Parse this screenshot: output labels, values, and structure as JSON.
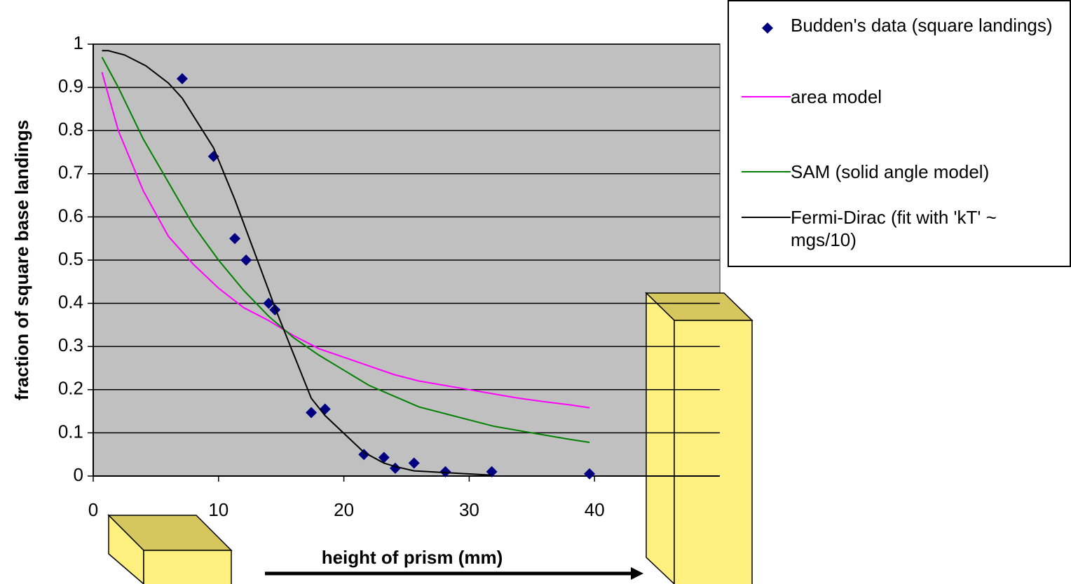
{
  "chart_data": {
    "type": "scatter",
    "xlabel": "height of prism (mm)",
    "ylabel": "fraction of square base landings",
    "xlim": [
      0,
      50
    ],
    "xticks": [
      0,
      10,
      20,
      30,
      40
    ],
    "ylim": [
      0,
      1
    ],
    "yticks": [
      0,
      0.1,
      0.2,
      0.3,
      0.4,
      0.5,
      0.6,
      0.7,
      0.8,
      0.9,
      1
    ],
    "grid": true,
    "legend": "upper right",
    "series": [
      {
        "name": "Budden's data (square landings)",
        "color": "#000080",
        "mode": "markers",
        "x": [
          7.1,
          9.6,
          11.3,
          12.2,
          14,
          14.5,
          17.4,
          18.5,
          21.6,
          23.2,
          24.1,
          25.6,
          28.1,
          31.8,
          39.6
        ],
        "values": [
          0.92,
          0.74,
          0.55,
          0.5,
          0.4,
          0.385,
          0.147,
          0.155,
          0.05,
          0.043,
          0.018,
          0.03,
          0.01,
          0.01,
          0.005
        ]
      },
      {
        "name": "area model",
        "color": "#ff00ff",
        "mode": "lines",
        "x": [
          0.7,
          2,
          4,
          6,
          8,
          10,
          12,
          14,
          16,
          18,
          20,
          22,
          24,
          26,
          28,
          30,
          32,
          34,
          36,
          38,
          39.6
        ],
        "values": [
          0.935,
          0.8,
          0.66,
          0.555,
          0.49,
          0.435,
          0.39,
          0.36,
          0.325,
          0.295,
          0.275,
          0.255,
          0.235,
          0.22,
          0.21,
          0.2,
          0.19,
          0.18,
          0.172,
          0.165,
          0.158
        ]
      },
      {
        "name": "SAM (solid angle model)",
        "color": "#008000",
        "mode": "lines",
        "x": [
          0.7,
          2,
          4,
          6,
          8,
          10,
          12,
          14,
          16,
          18,
          20,
          22,
          24,
          26,
          28,
          30,
          32,
          34,
          36,
          38,
          39.6
        ],
        "values": [
          0.97,
          0.9,
          0.78,
          0.68,
          0.58,
          0.5,
          0.43,
          0.37,
          0.32,
          0.28,
          0.245,
          0.21,
          0.185,
          0.16,
          0.145,
          0.13,
          0.115,
          0.105,
          0.095,
          0.085,
          0.078
        ]
      },
      {
        "name": "Fermi-Dirac (fit with 'kT' ~ mgs/10)",
        "color": "#000000",
        "mode": "lines",
        "x": [
          0.7,
          1.2,
          2.5,
          4.2,
          6,
          7.1,
          9.6,
          11.3,
          12.2,
          14,
          14.5,
          17.4,
          18.5,
          21.6,
          23.2,
          24.1,
          25.6,
          28.1,
          31.8
        ],
        "values": [
          0.985,
          0.985,
          0.975,
          0.95,
          0.91,
          0.875,
          0.76,
          0.64,
          0.57,
          0.43,
          0.39,
          0.18,
          0.14,
          0.055,
          0.03,
          0.022,
          0.012,
          0.008,
          0.002
        ]
      }
    ]
  }
}
